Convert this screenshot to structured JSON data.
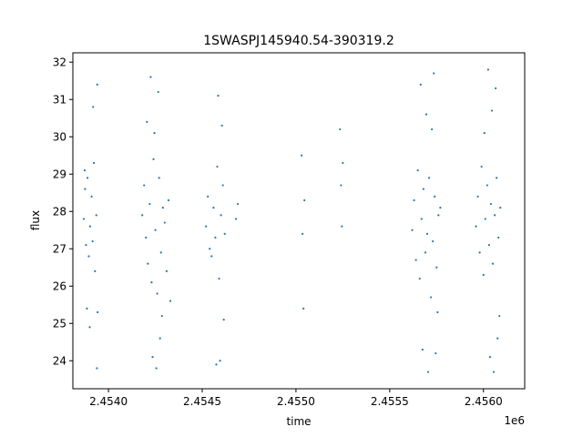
{
  "chart_data": {
    "type": "scatter",
    "title": "1SWASPJ145940.54-390319.2",
    "xlabel": "time",
    "ylabel": "flux",
    "x_offset_label": "1e6",
    "xlim": [
      2453810,
      2456220
    ],
    "ylim": [
      23.25,
      32.25
    ],
    "x_ticks": [
      {
        "value": 2454000,
        "label": "2.4540"
      },
      {
        "value": 2454500,
        "label": "2.4545"
      },
      {
        "value": 2455000,
        "label": "2.4550"
      },
      {
        "value": 2455500,
        "label": "2.4555"
      },
      {
        "value": 2456000,
        "label": "2.4560"
      }
    ],
    "y_ticks": [
      {
        "value": 24,
        "label": "24"
      },
      {
        "value": 25,
        "label": "25"
      },
      {
        "value": 26,
        "label": "26"
      },
      {
        "value": 27,
        "label": "27"
      },
      {
        "value": 28,
        "label": "28"
      },
      {
        "value": 29,
        "label": "29"
      },
      {
        "value": 30,
        "label": "30"
      },
      {
        "value": 31,
        "label": "31"
      },
      {
        "value": 32,
        "label": "32"
      }
    ],
    "grid": false,
    "color": "#1f77b4",
    "series": [
      {
        "points": [
          {
            "x": 2453868,
            "y": 27.8
          },
          {
            "x": 2453875,
            "y": 28.6
          },
          {
            "x": 2453880,
            "y": 27.1
          },
          {
            "x": 2453888,
            "y": 28.9
          },
          {
            "x": 2453895,
            "y": 26.8
          },
          {
            "x": 2453902,
            "y": 27.6
          },
          {
            "x": 2453910,
            "y": 28.4
          },
          {
            "x": 2453915,
            "y": 27.2
          },
          {
            "x": 2453922,
            "y": 29.3
          },
          {
            "x": 2453928,
            "y": 26.4
          },
          {
            "x": 2453935,
            "y": 27.9
          },
          {
            "x": 2453940,
            "y": 31.4
          },
          {
            "x": 2453942,
            "y": 25.3
          },
          {
            "x": 2453938,
            "y": 23.8
          },
          {
            "x": 2453900,
            "y": 24.9
          },
          {
            "x": 2453885,
            "y": 25.4
          },
          {
            "x": 2453918,
            "y": 30.8
          },
          {
            "x": 2453873,
            "y": 29.1
          },
          {
            "x": 2454180,
            "y": 27.9
          },
          {
            "x": 2454190,
            "y": 28.7
          },
          {
            "x": 2454200,
            "y": 27.3
          },
          {
            "x": 2454210,
            "y": 26.6
          },
          {
            "x": 2454220,
            "y": 28.2
          },
          {
            "x": 2454230,
            "y": 26.1
          },
          {
            "x": 2454240,
            "y": 29.4
          },
          {
            "x": 2454250,
            "y": 27.5
          },
          {
            "x": 2454260,
            "y": 25.8
          },
          {
            "x": 2454270,
            "y": 28.9
          },
          {
            "x": 2454280,
            "y": 26.9
          },
          {
            "x": 2454290,
            "y": 28.1
          },
          {
            "x": 2454300,
            "y": 27.7
          },
          {
            "x": 2454310,
            "y": 26.4
          },
          {
            "x": 2454320,
            "y": 28.3
          },
          {
            "x": 2454225,
            "y": 31.6
          },
          {
            "x": 2454235,
            "y": 24.1
          },
          {
            "x": 2454255,
            "y": 23.8
          },
          {
            "x": 2454265,
            "y": 31.2
          },
          {
            "x": 2454275,
            "y": 24.6
          },
          {
            "x": 2454205,
            "y": 30.4
          },
          {
            "x": 2454285,
            "y": 25.2
          },
          {
            "x": 2454245,
            "y": 30.1
          },
          {
            "x": 2454330,
            "y": 25.6
          },
          {
            "x": 2454520,
            "y": 27.6
          },
          {
            "x": 2454530,
            "y": 28.4
          },
          {
            "x": 2454540,
            "y": 27.0
          },
          {
            "x": 2454550,
            "y": 26.8
          },
          {
            "x": 2454560,
            "y": 28.1
          },
          {
            "x": 2454570,
            "y": 27.3
          },
          {
            "x": 2454580,
            "y": 29.2
          },
          {
            "x": 2454590,
            "y": 26.2
          },
          {
            "x": 2454600,
            "y": 27.9
          },
          {
            "x": 2454610,
            "y": 28.7
          },
          {
            "x": 2454620,
            "y": 27.4
          },
          {
            "x": 2454585,
            "y": 31.1
          },
          {
            "x": 2454595,
            "y": 24.0
          },
          {
            "x": 2454605,
            "y": 30.3
          },
          {
            "x": 2454615,
            "y": 25.1
          },
          {
            "x": 2454575,
            "y": 23.9
          },
          {
            "x": 2454680,
            "y": 27.8
          },
          {
            "x": 2454690,
            "y": 28.2
          },
          {
            "x": 2455030,
            "y": 29.5
          },
          {
            "x": 2455035,
            "y": 27.4
          },
          {
            "x": 2455040,
            "y": 25.4
          },
          {
            "x": 2455045,
            "y": 28.3
          },
          {
            "x": 2455235,
            "y": 30.2
          },
          {
            "x": 2455240,
            "y": 28.7
          },
          {
            "x": 2455245,
            "y": 27.6
          },
          {
            "x": 2455250,
            "y": 29.3
          },
          {
            "x": 2455620,
            "y": 27.5
          },
          {
            "x": 2455630,
            "y": 28.3
          },
          {
            "x": 2455640,
            "y": 26.7
          },
          {
            "x": 2455650,
            "y": 29.1
          },
          {
            "x": 2455660,
            "y": 26.2
          },
          {
            "x": 2455670,
            "y": 27.8
          },
          {
            "x": 2455680,
            "y": 28.6
          },
          {
            "x": 2455690,
            "y": 26.9
          },
          {
            "x": 2455700,
            "y": 27.4
          },
          {
            "x": 2455710,
            "y": 28.9
          },
          {
            "x": 2455720,
            "y": 25.7
          },
          {
            "x": 2455730,
            "y": 27.2
          },
          {
            "x": 2455740,
            "y": 28.4
          },
          {
            "x": 2455750,
            "y": 26.5
          },
          {
            "x": 2455760,
            "y": 27.9
          },
          {
            "x": 2455770,
            "y": 28.1
          },
          {
            "x": 2455665,
            "y": 31.4
          },
          {
            "x": 2455675,
            "y": 24.3
          },
          {
            "x": 2455695,
            "y": 30.6
          },
          {
            "x": 2455705,
            "y": 23.7
          },
          {
            "x": 2455735,
            "y": 31.7
          },
          {
            "x": 2455745,
            "y": 24.2
          },
          {
            "x": 2455725,
            "y": 30.2
          },
          {
            "x": 2455755,
            "y": 25.3
          },
          {
            "x": 2455960,
            "y": 27.6
          },
          {
            "x": 2455970,
            "y": 28.4
          },
          {
            "x": 2455980,
            "y": 26.9
          },
          {
            "x": 2455990,
            "y": 29.2
          },
          {
            "x": 2456000,
            "y": 26.3
          },
          {
            "x": 2456010,
            "y": 27.8
          },
          {
            "x": 2456020,
            "y": 28.7
          },
          {
            "x": 2456030,
            "y": 27.1
          },
          {
            "x": 2456040,
            "y": 28.2
          },
          {
            "x": 2456050,
            "y": 26.6
          },
          {
            "x": 2456060,
            "y": 27.9
          },
          {
            "x": 2456070,
            "y": 28.9
          },
          {
            "x": 2456080,
            "y": 27.3
          },
          {
            "x": 2456090,
            "y": 28.1
          },
          {
            "x": 2456025,
            "y": 31.8
          },
          {
            "x": 2456035,
            "y": 24.1
          },
          {
            "x": 2456045,
            "y": 30.7
          },
          {
            "x": 2456055,
            "y": 23.7
          },
          {
            "x": 2456065,
            "y": 31.3
          },
          {
            "x": 2456075,
            "y": 24.6
          },
          {
            "x": 2456005,
            "y": 30.1
          },
          {
            "x": 2456085,
            "y": 25.2
          }
        ]
      }
    ]
  }
}
